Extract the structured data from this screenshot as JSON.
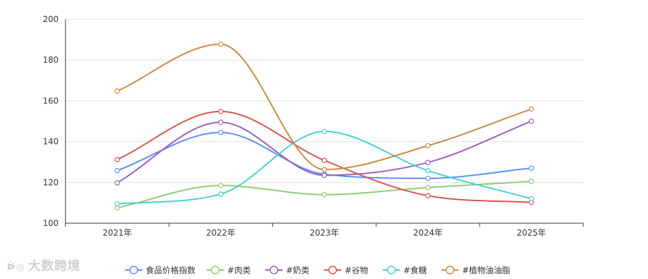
{
  "chart_data": {
    "type": "line",
    "smooth": true,
    "categories": [
      "2021年",
      "2022年",
      "2023年",
      "2024年",
      "2025年"
    ],
    "ylim": [
      100,
      200
    ],
    "yticks": [
      100,
      120,
      140,
      160,
      180,
      200
    ],
    "grid": true,
    "legend_position": "bottom-center",
    "series": [
      {
        "name": "食品价格指数",
        "color": "#5b8ff9",
        "values": [
          125.8,
          144.5,
          124.0,
          122.0,
          127.0
        ]
      },
      {
        "name": "#肉类",
        "color": "#91cc75",
        "values": [
          107.5,
          118.5,
          114.0,
          117.5,
          120.5
        ]
      },
      {
        "name": "#奶类",
        "color": "#9a60b4",
        "values": [
          119.8,
          149.5,
          123.5,
          129.8,
          150.0
        ]
      },
      {
        "name": "#谷物",
        "color": "#d9534f",
        "values": [
          131.2,
          154.8,
          130.8,
          113.5,
          110.2
        ]
      },
      {
        "name": "#食糖",
        "color": "#40d2d2",
        "values": [
          109.5,
          114.3,
          145.0,
          125.8,
          112.0
        ]
      },
      {
        "name": "#植物油油脂",
        "color": "#c98a3c",
        "values": [
          164.8,
          187.8,
          126.3,
          138.0,
          156.0
        ]
      }
    ]
  },
  "watermark": {
    "text": "大数跨境",
    "logo": "ᐖ◎"
  }
}
